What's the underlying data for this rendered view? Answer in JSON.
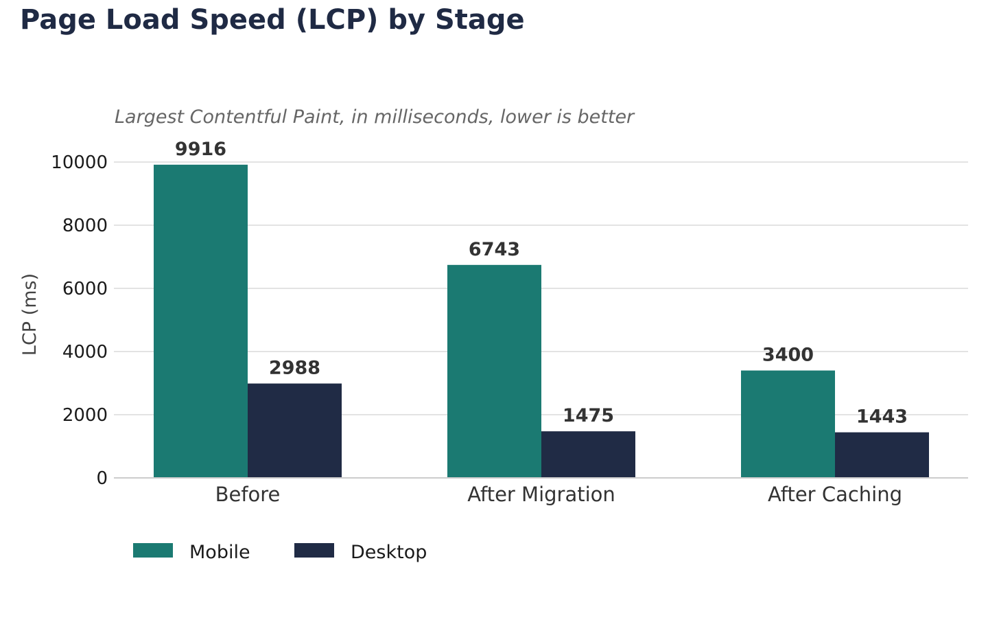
{
  "chart_data": {
    "type": "bar",
    "title": "Page Load Speed (LCP) by Stage",
    "subtitle": "Largest Contentful Paint, in milliseconds, lower is better",
    "xlabel": "",
    "ylabel": "LCP (ms)",
    "categories": [
      "Before",
      "After Migration",
      "After Caching"
    ],
    "series": [
      {
        "name": "Mobile",
        "color": "#1b7a72",
        "values": [
          9916,
          6743,
          3400
        ]
      },
      {
        "name": "Desktop",
        "color": "#202b45",
        "values": [
          2988,
          1475,
          1443
        ]
      }
    ],
    "ylim": [
      0,
      10000
    ],
    "yticks": [
      0,
      2000,
      4000,
      6000,
      8000,
      10000
    ],
    "grid": true,
    "legend": "bottom-left",
    "colors": {
      "title": "#1f2a44",
      "subtitle": "#666666",
      "grid": "#e3e3e3",
      "baseline": "#cccccc"
    }
  }
}
